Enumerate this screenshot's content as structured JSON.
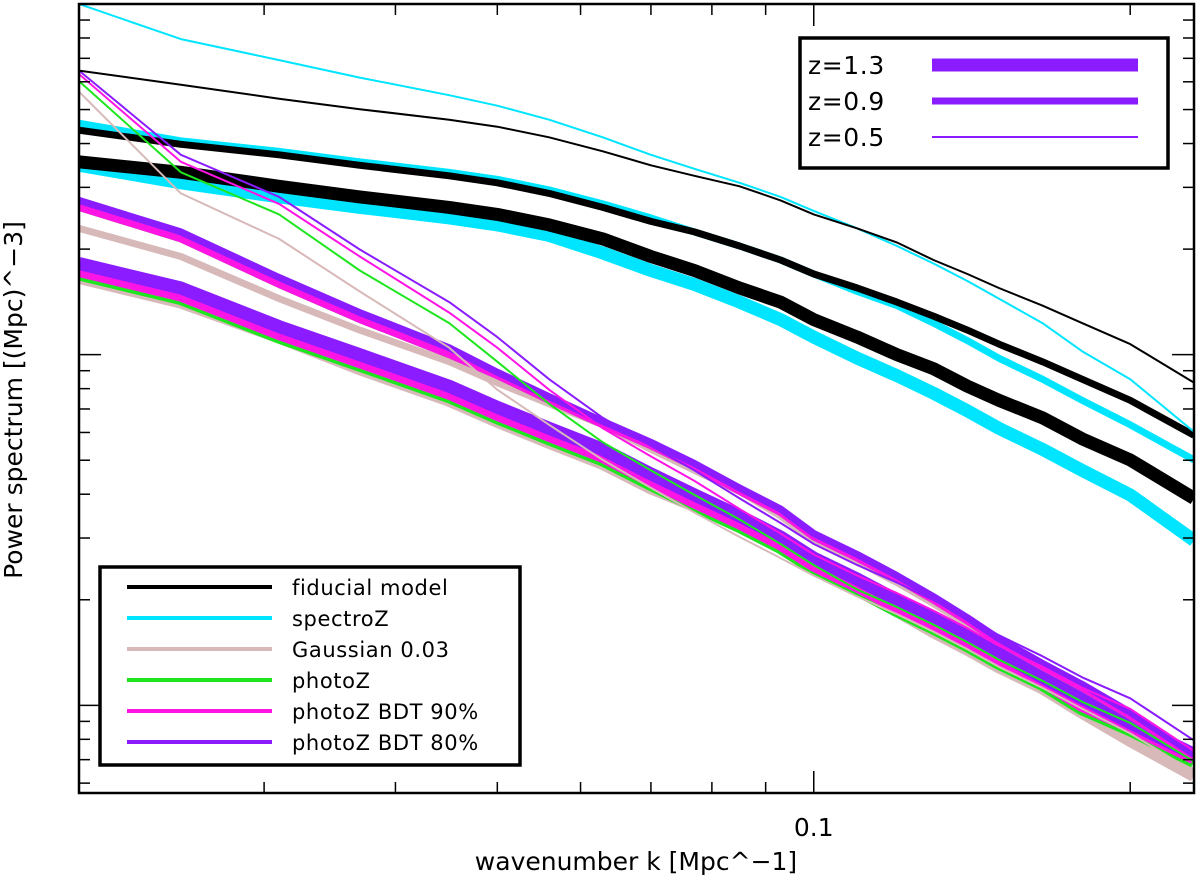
{
  "chart_data": {
    "type": "line",
    "xlabel": "wavenumber k [Mpc^−1]",
    "ylabel": "Power spectrum [(Mpc)^−3]",
    "xscale": "log",
    "yscale": "log",
    "xlim": [
      0.02,
      0.23
    ],
    "ylim_log10": [
      1.75,
      4.0
    ],
    "x_tick_labels": [
      {
        "value": 0.1,
        "label": "0.1"
      }
    ],
    "colors": {
      "fiducial": "#000000",
      "spectroZ": "#00e5ff",
      "gaussian": "#d8b9b9",
      "photoZ": "#1ee61e",
      "bdt90": "#ff14e6",
      "bdt80": "#8a1cff"
    },
    "redshift_widths": {
      "z=1.3": 13,
      "z=0.9": 7,
      "z=0.5": 2
    },
    "legend_methods": [
      {
        "key": "fiducial",
        "label": "fiducial model"
      },
      {
        "key": "spectroZ",
        "label": "spectroZ"
      },
      {
        "key": "gaussian",
        "label": "Gaussian 0.03"
      },
      {
        "key": "photoZ",
        "label": "photoZ"
      },
      {
        "key": "bdt90",
        "label": "photoZ BDT 90%"
      },
      {
        "key": "bdt80",
        "label": "photoZ BDT 80%"
      }
    ],
    "legend_redshift": [
      {
        "label": "z=1.3",
        "width": 13
      },
      {
        "label": "z=0.9",
        "width": 7
      },
      {
        "label": "z=0.5",
        "width": 2
      }
    ],
    "x": [
      0.02,
      0.025,
      0.031,
      0.037,
      0.045,
      0.05,
      0.056,
      0.063,
      0.07,
      0.077,
      0.085,
      0.093,
      0.1,
      0.11,
      0.12,
      0.13,
      0.14,
      0.15,
      0.165,
      0.18,
      0.2,
      0.23
    ],
    "series": [
      {
        "method": "fiducial",
        "z": "z=0.5",
        "log10_P": [
          3.81,
          3.77,
          3.73,
          3.7,
          3.67,
          3.65,
          3.62,
          3.58,
          3.54,
          3.51,
          3.48,
          3.44,
          3.4,
          3.36,
          3.32,
          3.27,
          3.23,
          3.19,
          3.14,
          3.09,
          3.03,
          2.92
        ]
      },
      {
        "method": "spectroZ",
        "z": "z=0.5",
        "log10_P": [
          4.0,
          3.9,
          3.84,
          3.79,
          3.74,
          3.71,
          3.67,
          3.62,
          3.57,
          3.53,
          3.49,
          3.45,
          3.41,
          3.36,
          3.31,
          3.26,
          3.21,
          3.16,
          3.09,
          3.01,
          2.93,
          2.78
        ]
      },
      {
        "method": "fiducial",
        "z": "z=0.9",
        "log10_P": [
          3.64,
          3.6,
          3.57,
          3.54,
          3.51,
          3.49,
          3.46,
          3.42,
          3.38,
          3.35,
          3.31,
          3.27,
          3.23,
          3.19,
          3.15,
          3.11,
          3.07,
          3.03,
          2.98,
          2.93,
          2.87,
          2.77
        ]
      },
      {
        "method": "spectroZ",
        "z": "z=0.9",
        "log10_P": [
          3.66,
          3.61,
          3.58,
          3.55,
          3.52,
          3.5,
          3.47,
          3.43,
          3.39,
          3.35,
          3.31,
          3.27,
          3.23,
          3.18,
          3.14,
          3.09,
          3.04,
          2.99,
          2.93,
          2.87,
          2.8,
          2.7
        ]
      },
      {
        "method": "fiducial",
        "z": "z=1.3",
        "log10_P": [
          3.55,
          3.52,
          3.48,
          3.45,
          3.42,
          3.4,
          3.37,
          3.33,
          3.28,
          3.24,
          3.19,
          3.15,
          3.1,
          3.05,
          3.0,
          2.96,
          2.91,
          2.87,
          2.82,
          2.76,
          2.7,
          2.59
        ]
      },
      {
        "method": "spectroZ",
        "z": "z=1.3",
        "log10_P": [
          3.54,
          3.49,
          3.45,
          3.42,
          3.39,
          3.37,
          3.34,
          3.29,
          3.24,
          3.2,
          3.15,
          3.1,
          3.05,
          2.99,
          2.94,
          2.89,
          2.84,
          2.79,
          2.73,
          2.67,
          2.6,
          2.47
        ]
      },
      {
        "method": "gaussian",
        "z": "z=0.5",
        "log10_P": [
          3.75,
          3.46,
          3.33,
          3.18,
          3.02,
          2.9,
          2.8,
          2.7,
          2.62,
          2.55,
          2.48,
          2.42,
          2.37,
          2.31,
          2.26,
          2.21,
          2.16,
          2.11,
          2.05,
          1.99,
          1.92,
          1.81
        ]
      },
      {
        "method": "photoZ",
        "z": "z=0.5",
        "log10_P": [
          3.78,
          3.52,
          3.4,
          3.24,
          3.09,
          2.98,
          2.86,
          2.75,
          2.67,
          2.6,
          2.53,
          2.46,
          2.4,
          2.33,
          2.28,
          2.23,
          2.18,
          2.13,
          2.07,
          2.01,
          1.95,
          1.84
        ]
      },
      {
        "method": "bdt90",
        "z": "z=0.5",
        "log10_P": [
          3.8,
          3.55,
          3.43,
          3.28,
          3.12,
          3.02,
          2.9,
          2.79,
          2.71,
          2.64,
          2.56,
          2.49,
          2.43,
          2.37,
          2.32,
          2.27,
          2.22,
          2.17,
          2.11,
          2.05,
          1.99,
          1.87
        ]
      },
      {
        "method": "bdt80",
        "z": "z=0.5",
        "log10_P": [
          3.81,
          3.57,
          3.45,
          3.3,
          3.15,
          3.05,
          2.93,
          2.82,
          2.74,
          2.67,
          2.59,
          2.52,
          2.46,
          2.4,
          2.35,
          2.3,
          2.25,
          2.2,
          2.14,
          2.08,
          2.02,
          1.9
        ]
      },
      {
        "method": "gaussian",
        "z": "z=0.9",
        "log10_P": [
          3.36,
          3.28,
          3.16,
          3.07,
          2.98,
          2.92,
          2.86,
          2.8,
          2.73,
          2.67,
          2.61,
          2.54,
          2.47,
          2.41,
          2.35,
          2.29,
          2.23,
          2.18,
          2.11,
          2.05,
          1.97,
          1.85
        ]
      },
      {
        "method": "photoZ",
        "z": "z=0.9",
        "log10_P": [
          3.42,
          3.33,
          3.2,
          3.1,
          3.0,
          2.94,
          2.87,
          2.8,
          2.74,
          2.68,
          2.61,
          2.55,
          2.48,
          2.42,
          2.36,
          2.3,
          2.24,
          2.18,
          2.11,
          2.05,
          1.97,
          1.85
        ]
      },
      {
        "method": "bdt90",
        "z": "z=0.9",
        "log10_P": [
          3.42,
          3.33,
          3.2,
          3.1,
          3.0,
          2.94,
          2.87,
          2.8,
          2.74,
          2.68,
          2.61,
          2.55,
          2.48,
          2.42,
          2.36,
          2.3,
          2.24,
          2.18,
          2.11,
          2.05,
          1.97,
          1.85
        ]
      },
      {
        "method": "bdt80",
        "z": "z=0.9",
        "log10_P": [
          3.44,
          3.35,
          3.22,
          3.12,
          3.02,
          2.95,
          2.88,
          2.81,
          2.75,
          2.69,
          2.62,
          2.56,
          2.49,
          2.43,
          2.37,
          2.31,
          2.25,
          2.19,
          2.12,
          2.06,
          1.98,
          1.86
        ]
      },
      {
        "method": "gaussian",
        "z": "z=1.3",
        "log10_P": [
          3.22,
          3.15,
          3.05,
          2.96,
          2.87,
          2.81,
          2.75,
          2.69,
          2.62,
          2.57,
          2.51,
          2.45,
          2.39,
          2.33,
          2.27,
          2.21,
          2.16,
          2.11,
          2.05,
          1.98,
          1.9,
          1.8
        ]
      },
      {
        "method": "photoZ",
        "z": "z=1.3",
        "log10_P": [
          3.23,
          3.16,
          3.05,
          2.97,
          2.88,
          2.82,
          2.76,
          2.7,
          2.63,
          2.57,
          2.51,
          2.45,
          2.39,
          2.33,
          2.27,
          2.22,
          2.17,
          2.12,
          2.06,
          1.99,
          1.93,
          1.84
        ]
      },
      {
        "method": "bdt90",
        "z": "z=1.3",
        "log10_P": [
          3.24,
          3.17,
          3.06,
          2.98,
          2.89,
          2.83,
          2.77,
          2.71,
          2.64,
          2.58,
          2.52,
          2.46,
          2.4,
          2.34,
          2.28,
          2.23,
          2.18,
          2.13,
          2.07,
          2.0,
          1.94,
          1.85
        ]
      },
      {
        "method": "bdt80",
        "z": "z=1.3",
        "log10_P": [
          3.26,
          3.19,
          3.08,
          3.0,
          2.91,
          2.85,
          2.79,
          2.73,
          2.66,
          2.6,
          2.54,
          2.48,
          2.42,
          2.36,
          2.3,
          2.25,
          2.2,
          2.15,
          2.08,
          2.02,
          1.95,
          1.86
        ]
      }
    ]
  }
}
